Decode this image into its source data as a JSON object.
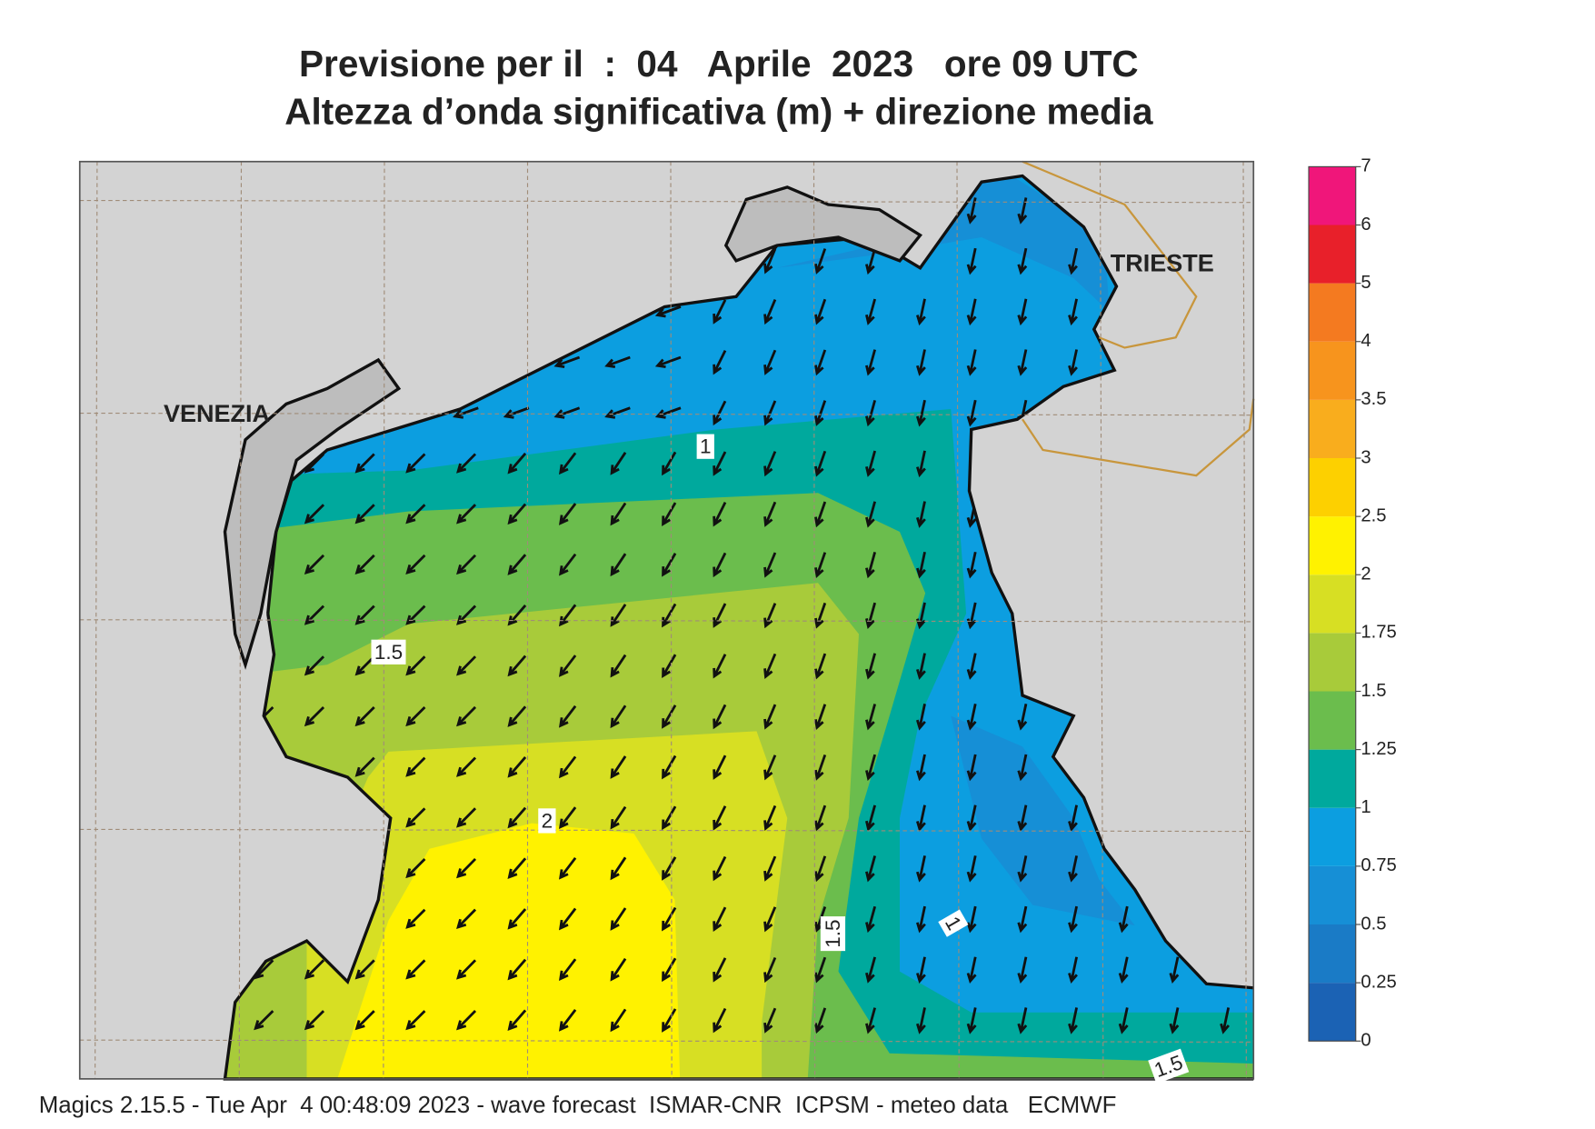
{
  "title": [
    "Previsione per il  :  04   Aprile  2023   ore 09 UTC",
    "Altezza d’onda significativa (m) + direzione media"
  ],
  "places": [
    "VENEZIA",
    "TRIESTE"
  ],
  "contour_labels": [
    "1",
    "1.5",
    "2",
    "1.5",
    "1",
    "1.5"
  ],
  "colorbar": {
    "ticks": [
      0,
      0.25,
      0.5,
      0.75,
      1,
      1.25,
      1.5,
      1.75,
      2,
      2.5,
      3,
      3.5,
      4,
      5,
      6,
      7
    ],
    "colors": [
      "#1b62b4",
      "#1a7bc6",
      "#168fd6",
      "#0c9ee0",
      "#00a99d",
      "#6bbd4d",
      "#a8cb3a",
      "#d7df23",
      "#fff200",
      "#fdd000",
      "#f9ad1d",
      "#f7941d",
      "#f47a20",
      "#e8202a",
      "#f0167a"
    ]
  },
  "footer": "Magics 2.15.5 - Tue Apr  4 00:48:09 2023 - wave forecast  ISMAR-CNR  ICPSM - meteo data   ECMWF"
}
